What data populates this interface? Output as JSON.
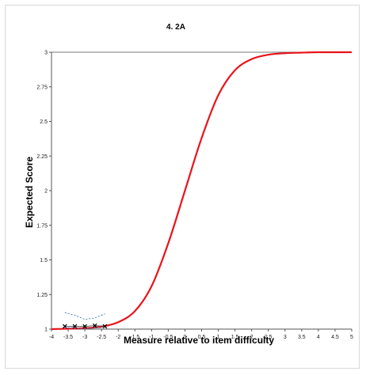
{
  "chart_data": {
    "type": "line",
    "title": "4. 2A",
    "xlabel": "Measure relative to item difficulty",
    "ylabel": "Expected Score",
    "xlim": [
      -4,
      5
    ],
    "ylim": [
      1,
      3
    ],
    "x_ticks": [
      "-4",
      "-3.5",
      "-3",
      "-2.5",
      "-2",
      "-1.5",
      "-1",
      "-0.5",
      "0",
      "0.5",
      "1",
      "1.5",
      "2",
      "2.5",
      "3",
      "3.5",
      "4",
      "4.5",
      "5"
    ],
    "y_ticks": [
      "1",
      "1.25",
      "1.5",
      "1.75",
      "2",
      "2.25",
      "2.5",
      "2.75",
      "3"
    ],
    "grid": false,
    "series": [
      {
        "kind": "curve",
        "color": "#e8141b",
        "x": [
          -4,
          -3.5,
          -3,
          -2.5,
          -2,
          -1.5,
          -1,
          -0.5,
          0,
          0.5,
          1,
          1.5,
          2,
          2.5,
          3,
          3.5,
          4,
          4.5,
          5
        ],
        "y": [
          1.0,
          1.003,
          1.007,
          1.018,
          1.05,
          1.13,
          1.31,
          1.62,
          2.0,
          2.38,
          2.69,
          2.87,
          2.95,
          2.982,
          2.993,
          2.997,
          3.0,
          3.0,
          3.0
        ]
      },
      {
        "kind": "observed",
        "color": "#000000",
        "marker": "x",
        "x": [
          -3.6,
          -3.3,
          -3.0,
          -2.7,
          -2.4
        ],
        "y": [
          1.02,
          1.02,
          1.02,
          1.025,
          1.02
        ]
      },
      {
        "kind": "upper-band",
        "color": "#4a7fc0",
        "x": [
          -3.6,
          -3.3,
          -3.0,
          -2.7,
          -2.4
        ],
        "y": [
          1.12,
          1.1,
          1.07,
          1.08,
          1.11
        ]
      },
      {
        "kind": "lower-band",
        "color": "#4a7fc0",
        "x": [
          -3.6,
          -3.3,
          -3.0,
          -2.7,
          -2.4
        ],
        "y": [
          1.01,
          1.01,
          1.0,
          1.01,
          1.01
        ]
      }
    ]
  }
}
